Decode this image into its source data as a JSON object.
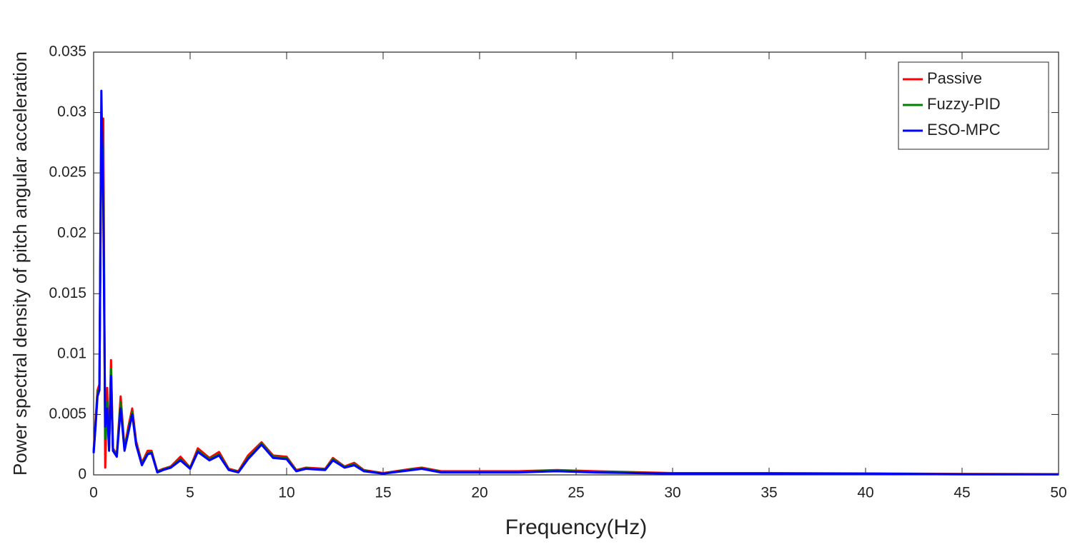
{
  "chart_data": {
    "type": "line",
    "xlabel": "Frequency(Hz)",
    "ylabel": "Power spectral density of pitch angular acceleration",
    "x": [
      0,
      0.1,
      0.2,
      0.3,
      0.4,
      0.5,
      0.6,
      0.7,
      0.8,
      0.9,
      1.0,
      1.2,
      1.4,
      1.6,
      1.8,
      2.0,
      2.2,
      2.5,
      2.8,
      3.0,
      3.3,
      3.6,
      4.0,
      4.5,
      5.0,
      5.4,
      6.0,
      6.5,
      7.0,
      7.5,
      8.0,
      8.7,
      9.3,
      10.0,
      10.5,
      11.0,
      12.0,
      12.4,
      13.0,
      13.5,
      14.0,
      15.0,
      16.5,
      17.0,
      18.0,
      20.0,
      22.0,
      24.0,
      26.0,
      30.0,
      35.0,
      40.0,
      45.0,
      50.0
    ],
    "series": [
      {
        "name": "Passive",
        "color": "#ff0000",
        "values": [
          0.002,
          0.0045,
          0.007,
          0.0075,
          0.028,
          0.0295,
          0.0006,
          0.0072,
          0.0022,
          0.0095,
          0.0022,
          0.0017,
          0.0065,
          0.0022,
          0.004,
          0.0055,
          0.0028,
          0.001,
          0.002,
          0.002,
          0.0003,
          0.0005,
          0.0007,
          0.0015,
          0.0006,
          0.0022,
          0.0014,
          0.0019,
          0.0005,
          0.0003,
          0.0016,
          0.0027,
          0.0016,
          0.0015,
          0.0004,
          0.0006,
          0.0005,
          0.0014,
          0.0007,
          0.001,
          0.0004,
          0.00015,
          0.0005,
          0.0006,
          0.0003,
          0.0003,
          0.0003,
          0.0004,
          0.0003,
          0.00015,
          0.00015,
          0.00012,
          8e-05,
          6e-05
        ]
      },
      {
        "name": "Fuzzy-PID",
        "color": "#008000",
        "values": [
          0.0019,
          0.0042,
          0.0068,
          0.0072,
          0.03,
          0.025,
          0.003,
          0.006,
          0.0021,
          0.0088,
          0.0021,
          0.0016,
          0.006,
          0.0021,
          0.0037,
          0.0052,
          0.0026,
          0.0009,
          0.0018,
          0.0019,
          0.00025,
          0.00045,
          0.00065,
          0.0013,
          0.00055,
          0.002,
          0.0013,
          0.0017,
          0.00045,
          0.00025,
          0.0014,
          0.0026,
          0.0015,
          0.0014,
          0.00035,
          0.00055,
          0.00045,
          0.0013,
          0.00065,
          0.0009,
          0.00035,
          0.00012,
          0.00045,
          0.00055,
          0.00025,
          0.00025,
          0.00025,
          0.00035,
          0.00025,
          0.00012,
          0.00012,
          0.0001,
          6e-05,
          5e-05
        ]
      },
      {
        "name": "ESO-MPC",
        "color": "#0000ff",
        "values": [
          0.0018,
          0.004,
          0.0065,
          0.007,
          0.0318,
          0.022,
          0.004,
          0.0055,
          0.002,
          0.0082,
          0.002,
          0.0015,
          0.0055,
          0.002,
          0.0035,
          0.005,
          0.0025,
          0.0008,
          0.0017,
          0.0018,
          0.0002,
          0.0004,
          0.0006,
          0.0012,
          0.0005,
          0.0019,
          0.0012,
          0.0016,
          0.0004,
          0.0002,
          0.0013,
          0.0025,
          0.0014,
          0.0013,
          0.0003,
          0.0005,
          0.0004,
          0.0012,
          0.0006,
          0.0008,
          0.0003,
          0.0001,
          0.0004,
          0.0005,
          0.0002,
          0.0002,
          0.0002,
          0.0003,
          0.0002,
          0.0001,
          0.0001,
          0.0001,
          5e-05,
          5e-05
        ]
      }
    ],
    "xlim": [
      0,
      50
    ],
    "xticks": [
      0,
      5,
      10,
      15,
      20,
      25,
      30,
      35,
      40,
      45,
      50
    ],
    "ylim": [
      0,
      0.035
    ],
    "yticks": [
      0,
      0.005,
      0.01,
      0.015,
      0.02,
      0.025,
      0.03,
      0.035
    ],
    "grid": false,
    "legend": "upper right"
  }
}
